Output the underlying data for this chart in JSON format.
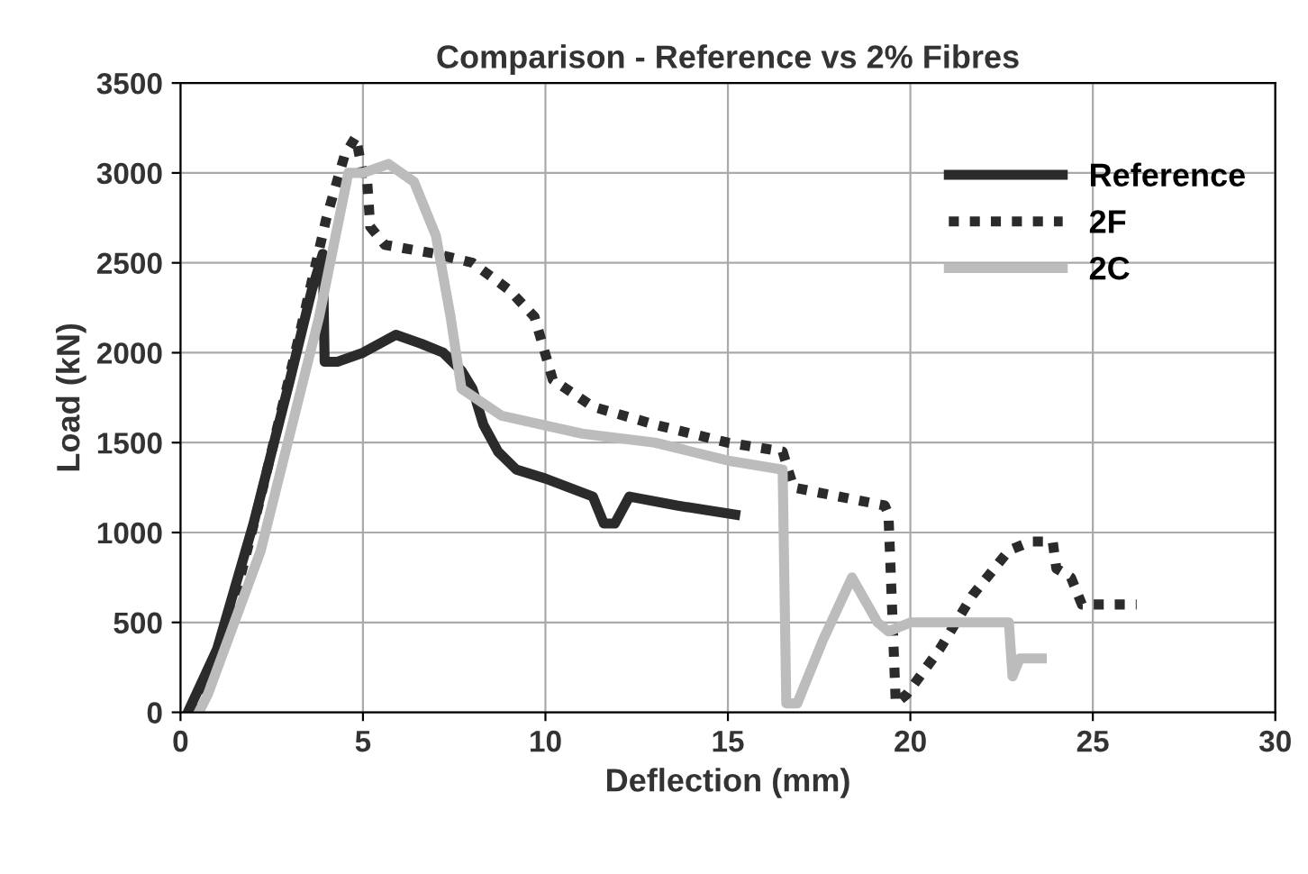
{
  "chart_data": {
    "type": "line",
    "title": "Comparison - Reference vs 2% Fibres",
    "xlabel": "Deflection (mm)",
    "ylabel": "Load (kN)",
    "xlim": [
      0,
      30
    ],
    "xticks": [
      0,
      5,
      10,
      15,
      20,
      25,
      30
    ],
    "ylim": [
      0,
      3500
    ],
    "yticks": [
      0,
      500,
      1000,
      1500,
      2000,
      2500,
      3000,
      3500
    ],
    "grid": true,
    "legend": "top right",
    "marker": "none",
    "series": [
      {
        "name": "Reference",
        "color": "#2b2b2b",
        "line_style": "solid",
        "x": [
          0.2,
          1,
          2,
          3,
          3.6,
          3.9,
          3.95,
          4.3,
          5,
          5.9,
          6.6,
          7.2,
          7.7,
          8.0,
          8.3,
          8.7,
          9.2,
          10,
          11.3,
          11.6,
          11.9,
          12.3,
          13.6,
          15.2
        ],
        "values": [
          0,
          350,
          1050,
          1850,
          2350,
          2550,
          1950,
          1950,
          2000,
          2100,
          2050,
          2000,
          1900,
          1800,
          1600,
          1450,
          1350,
          1300,
          1200,
          1050,
          1050,
          1200,
          1150,
          1100
        ]
      },
      {
        "name": "2F",
        "color": "#2b2b2b",
        "line_style": "dashed",
        "x": [
          0.3,
          1.2,
          2.2,
          3.2,
          4,
          4.5,
          4.8,
          5.0,
          5.1,
          5.2,
          5.6,
          7,
          8,
          9,
          9.7,
          10.2,
          11.3,
          13,
          15,
          16.5,
          16.8,
          19.3,
          19.4,
          19.6,
          19.9,
          20.8,
          21.7,
          22.7,
          23.3,
          23.9,
          24.0,
          24.4,
          24.7,
          26.2
        ],
        "values": [
          0,
          400,
          1200,
          2050,
          2750,
          3100,
          3200,
          3000,
          3000,
          2700,
          2600,
          2550,
          2500,
          2350,
          2200,
          1850,
          1700,
          1600,
          1500,
          1450,
          1250,
          1150,
          1100,
          50,
          100,
          350,
          650,
          900,
          950,
          950,
          800,
          750,
          600,
          600
        ]
      },
      {
        "name": "2C",
        "color": "#bcbcbc",
        "line_style": "solid",
        "x": [
          0.5,
          0.75,
          2.2,
          3.0,
          3.8,
          4.3,
          4.6,
          5.0,
          5.7,
          6.4,
          7.0,
          7.4,
          7.7,
          8.8,
          11,
          13,
          15,
          16.5,
          16.6,
          16.9,
          17.6,
          18.4,
          19.1,
          19.4,
          20,
          21,
          22.7,
          22.8,
          23.0,
          23.6
        ],
        "values": [
          0,
          100,
          900,
          1550,
          2200,
          2700,
          3000,
          3000,
          3050,
          2950,
          2650,
          2200,
          1800,
          1650,
          1550,
          1500,
          1400,
          1350,
          50,
          50,
          400,
          750,
          500,
          450,
          500,
          500,
          500,
          200,
          300,
          300
        ]
      }
    ]
  }
}
